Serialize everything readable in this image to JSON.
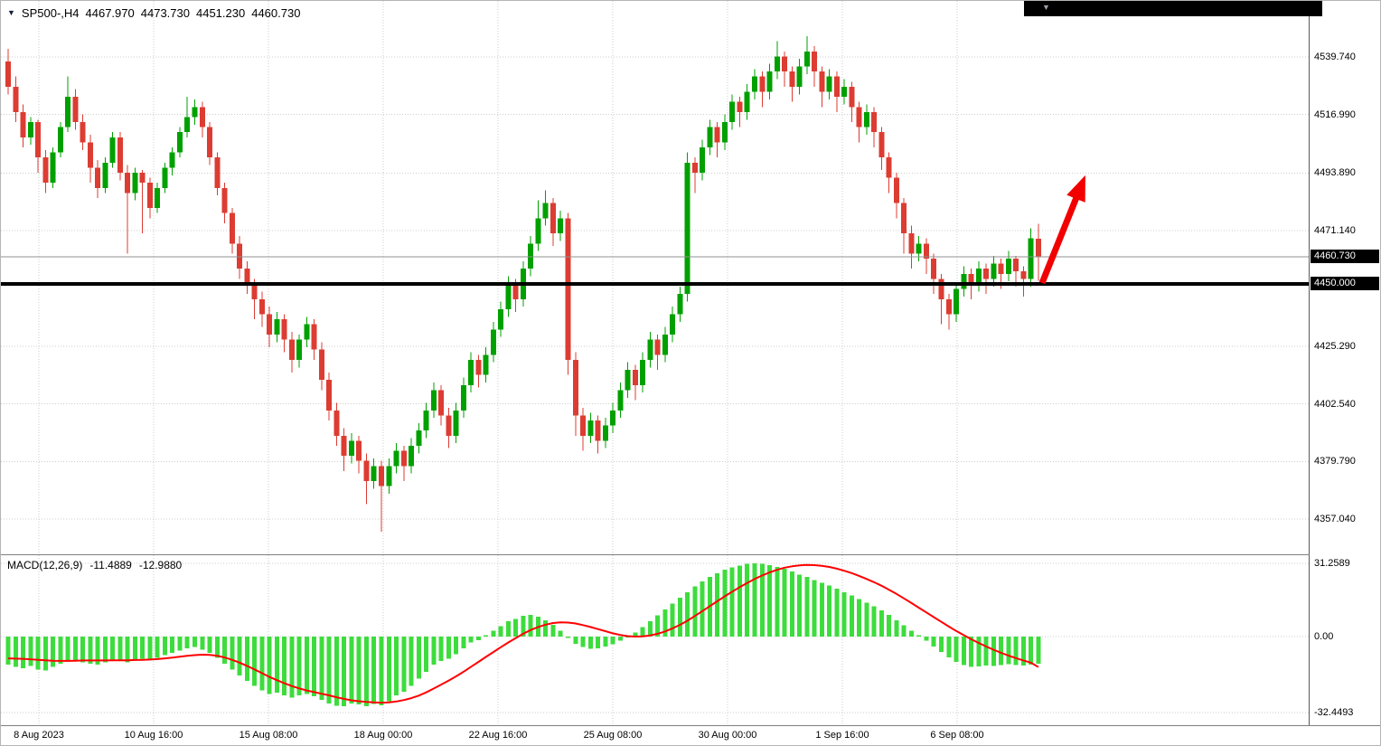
{
  "header": {
    "symbol_period": "SP500-,H4",
    "open": "4467.970",
    "high": "4473.730",
    "low": "4451.230",
    "close": "4460.730"
  },
  "indicator": {
    "label": "MACD(12,26,9)",
    "macd_value": "-11.4889",
    "signal_value": "-12.9880"
  },
  "price_axis": {
    "labels": [
      "4539.740",
      "4516.990",
      "4493.890",
      "4471.140",
      "4425.290",
      "4402.540",
      "4379.790",
      "4357.040"
    ],
    "current_price_badge": "4460.730",
    "support_badge": "4450.000"
  },
  "macd_axis": {
    "labels": [
      "31.2589",
      "0.00",
      "-32.4493"
    ]
  },
  "time_axis": {
    "labels": [
      "8 Aug 2023",
      "10 Aug 16:00",
      "15 Aug 08:00",
      "18 Aug 00:00",
      "22 Aug 16:00",
      "25 Aug 08:00",
      "30 Aug 00:00",
      "1 Sep 16:00",
      "6 Sep 08:00"
    ]
  },
  "colors": {
    "up": "#00A000",
    "down": "#DC3C32",
    "macd_hist": "#3DDC3D",
    "signal": "#FF0000",
    "grid": "#CDCDCD",
    "support_line": "#000000",
    "arrow": "#F20000",
    "badge_bg": "#000000",
    "badge_text": "#FFFFFF"
  },
  "chart_data": {
    "type": "candlestick",
    "symbol": "SP500-",
    "timeframe": "H4",
    "current_ohlc": {
      "open": 4467.97,
      "high": 4473.73,
      "low": 4451.23,
      "close": 4460.73
    },
    "current_price": 4460.73,
    "support_level": 4450.0,
    "price_gridlines": [
      4539.74,
      4516.99,
      4493.89,
      4471.14,
      4425.29,
      4402.54,
      4379.79,
      4357.04
    ],
    "ylim": [
      4350,
      4552
    ],
    "candles": [
      [
        4538,
        4543,
        4525,
        4528
      ],
      [
        4528,
        4532,
        4514,
        4518
      ],
      [
        4518,
        4521,
        4504,
        4508
      ],
      [
        4508,
        4516,
        4505,
        4514
      ],
      [
        4514,
        4515,
        4494,
        4500
      ],
      [
        4500,
        4503,
        4486,
        4490
      ],
      [
        4490,
        4504,
        4488,
        4502
      ],
      [
        4502,
        4514,
        4500,
        4512
      ],
      [
        4512,
        4532,
        4510,
        4524
      ],
      [
        4524,
        4527,
        4511,
        4514
      ],
      [
        4514,
        4517,
        4503,
        4506
      ],
      [
        4506,
        4509,
        4490,
        4496
      ],
      [
        4496,
        4499,
        4484,
        4488
      ],
      [
        4488,
        4500,
        4486,
        4498
      ],
      [
        4498,
        4510,
        4496,
        4508
      ],
      [
        4508,
        4510,
        4491,
        4494
      ],
      [
        4494,
        4497,
        4462,
        4486
      ],
      [
        4486,
        4496,
        4483,
        4494
      ],
      [
        4494,
        4495,
        4470,
        4490
      ],
      [
        4490,
        4492,
        4476,
        4480
      ],
      [
        4480,
        4490,
        4478,
        4488
      ],
      [
        4488,
        4498,
        4486,
        4496
      ],
      [
        4496,
        4504,
        4493,
        4502
      ],
      [
        4502,
        4512,
        4500,
        4510
      ],
      [
        4510,
        4524,
        4508,
        4516
      ],
      [
        4516,
        4523,
        4513,
        4520
      ],
      [
        4520,
        4522,
        4508,
        4512
      ],
      [
        4512,
        4514,
        4497,
        4500
      ],
      [
        4500,
        4502,
        4485,
        4488
      ],
      [
        4488,
        4490,
        4474,
        4478
      ],
      [
        4478,
        4480,
        4462,
        4466
      ],
      [
        4466,
        4469,
        4452,
        4456
      ],
      [
        4456,
        4459,
        4446,
        4450
      ],
      [
        4450,
        4452,
        4436,
        4444
      ],
      [
        4444,
        4447,
        4433,
        4438
      ],
      [
        4438,
        4441,
        4425,
        4430
      ],
      [
        4430,
        4439,
        4427,
        4436
      ],
      [
        4436,
        4438,
        4423,
        4428
      ],
      [
        4428,
        4431,
        4415,
        4420
      ],
      [
        4420,
        4430,
        4417,
        4428
      ],
      [
        4428,
        4437,
        4425,
        4434
      ],
      [
        4434,
        4436,
        4420,
        4424
      ],
      [
        4424,
        4427,
        4408,
        4412
      ],
      [
        4412,
        4415,
        4396,
        4400
      ],
      [
        4400,
        4403,
        4386,
        4390
      ],
      [
        4390,
        4393,
        4376,
        4382
      ],
      [
        4382,
        4391,
        4379,
        4388
      ],
      [
        4388,
        4390,
        4375,
        4380
      ],
      [
        4380,
        4383,
        4363,
        4372
      ],
      [
        4372,
        4381,
        4369,
        4378
      ],
      [
        4378,
        4380,
        4352,
        4370
      ],
      [
        4370,
        4381,
        4367,
        4378
      ],
      [
        4378,
        4387,
        4375,
        4384
      ],
      [
        4384,
        4386,
        4372,
        4378
      ],
      [
        4378,
        4389,
        4375,
        4386
      ],
      [
        4386,
        4395,
        4383,
        4392
      ],
      [
        4392,
        4403,
        4389,
        4400
      ],
      [
        4400,
        4411,
        4397,
        4408
      ],
      [
        4408,
        4410,
        4394,
        4398
      ],
      [
        4398,
        4401,
        4385,
        4390
      ],
      [
        4390,
        4403,
        4387,
        4400
      ],
      [
        4400,
        4413,
        4397,
        4410
      ],
      [
        4410,
        4423,
        4407,
        4420
      ],
      [
        4420,
        4422,
        4409,
        4414
      ],
      [
        4414,
        4425,
        4411,
        4422
      ],
      [
        4422,
        4435,
        4419,
        4432
      ],
      [
        4432,
        4443,
        4429,
        4440
      ],
      [
        4440,
        4453,
        4437,
        4450
      ],
      [
        4450,
        4452,
        4439,
        4444
      ],
      [
        4444,
        4459,
        4441,
        4456
      ],
      [
        4456,
        4469,
        4453,
        4466
      ],
      [
        4466,
        4483,
        4463,
        4476
      ],
      [
        4476,
        4487,
        4473,
        4482
      ],
      [
        4482,
        4484,
        4465,
        4470
      ],
      [
        4470,
        4479,
        4467,
        4476
      ],
      [
        4476,
        4478,
        4414,
        4420
      ],
      [
        4420,
        4423,
        4390,
        4398
      ],
      [
        4398,
        4401,
        4384,
        4390
      ],
      [
        4390,
        4399,
        4387,
        4396
      ],
      [
        4396,
        4398,
        4383,
        4388
      ],
      [
        4388,
        4397,
        4385,
        4394
      ],
      [
        4394,
        4403,
        4391,
        4400
      ],
      [
        4400,
        4411,
        4397,
        4408
      ],
      [
        4408,
        4419,
        4405,
        4416
      ],
      [
        4416,
        4418,
        4404,
        4410
      ],
      [
        4410,
        4423,
        4407,
        4420
      ],
      [
        4420,
        4431,
        4417,
        4428
      ],
      [
        4428,
        4430,
        4416,
        4422
      ],
      [
        4422,
        4433,
        4419,
        4430
      ],
      [
        4430,
        4441,
        4427,
        4438
      ],
      [
        4438,
        4449,
        4435,
        4446
      ],
      [
        4446,
        4502,
        4443,
        4498
      ],
      [
        4498,
        4500,
        4486,
        4494
      ],
      [
        4494,
        4507,
        4491,
        4504
      ],
      [
        4504,
        4515,
        4501,
        4512
      ],
      [
        4512,
        4514,
        4500,
        4506
      ],
      [
        4506,
        4517,
        4503,
        4514
      ],
      [
        4514,
        4525,
        4511,
        4522
      ],
      [
        4522,
        4524,
        4512,
        4518
      ],
      [
        4518,
        4529,
        4515,
        4526
      ],
      [
        4526,
        4535,
        4523,
        4532
      ],
      [
        4532,
        4534,
        4520,
        4526
      ],
      [
        4526,
        4537,
        4523,
        4534
      ],
      [
        4534,
        4546,
        4531,
        4540
      ],
      [
        4540,
        4542,
        4528,
        4534
      ],
      [
        4534,
        4536,
        4522,
        4528
      ],
      [
        4528,
        4539,
        4525,
        4536
      ],
      [
        4536,
        4548,
        4533,
        4542
      ],
      [
        4542,
        4544,
        4528,
        4534
      ],
      [
        4534,
        4536,
        4520,
        4526
      ],
      [
        4526,
        4535,
        4523,
        4532
      ],
      [
        4532,
        4534,
        4518,
        4524
      ],
      [
        4524,
        4531,
        4521,
        4528
      ],
      [
        4528,
        4530,
        4514,
        4520
      ],
      [
        4520,
        4522,
        4506,
        4512
      ],
      [
        4512,
        4521,
        4509,
        4518
      ],
      [
        4518,
        4520,
        4504,
        4510
      ],
      [
        4510,
        4512,
        4495,
        4500
      ],
      [
        4500,
        4502,
        4486,
        4492
      ],
      [
        4492,
        4494,
        4476,
        4482
      ],
      [
        4482,
        4484,
        4462,
        4470
      ],
      [
        4470,
        4473,
        4456,
        4462
      ],
      [
        4462,
        4469,
        4459,
        4466
      ],
      [
        4466,
        4468,
        4454,
        4460
      ],
      [
        4460,
        4462,
        4446,
        4452
      ],
      [
        4452,
        4454,
        4434,
        4444
      ],
      [
        4444,
        4446,
        4432,
        4438
      ],
      [
        4438,
        4450,
        4435,
        4448
      ],
      [
        4448,
        4457,
        4445,
        4454
      ],
      [
        4454,
        4456,
        4444,
        4450
      ],
      [
        4450,
        4459,
        4447,
        4456
      ],
      [
        4456,
        4458,
        4446,
        4452
      ],
      [
        4452,
        4461,
        4449,
        4458
      ],
      [
        4458,
        4460,
        4448,
        4454
      ],
      [
        4454,
        4463,
        4451,
        4460
      ],
      [
        4460,
        4461,
        4449,
        4455
      ],
      [
        4455,
        4457,
        4445,
        4452
      ],
      [
        4452,
        4472,
        4449,
        4468
      ],
      [
        4467.97,
        4473.73,
        4451.23,
        4460.73
      ]
    ],
    "macd": {
      "params": [
        12,
        26,
        9
      ],
      "ylim": [
        -32.4493,
        31.2589
      ],
      "hist": [
        -12,
        -13,
        -13.5,
        -12.5,
        -14,
        -14.5,
        -13,
        -11.5,
        -10,
        -10.5,
        -11,
        -11.5,
        -12,
        -11,
        -10,
        -10.5,
        -11,
        -10,
        -9.5,
        -10,
        -9,
        -8,
        -7,
        -6,
        -5,
        -4.5,
        -5.5,
        -7,
        -9,
        -11.5,
        -14,
        -16.5,
        -19,
        -21,
        -23,
        -24.5,
        -24,
        -25,
        -26,
        -25,
        -24.5,
        -25.5,
        -27,
        -28.5,
        -29.5,
        -29.8,
        -28.5,
        -29,
        -29.8,
        -28.8,
        -29.4,
        -27.5,
        -25,
        -23.5,
        -21,
        -18,
        -15,
        -12,
        -10.5,
        -9.5,
        -7.5,
        -5,
        -2.5,
        -1.5,
        0.5,
        2.5,
        4.5,
        6.5,
        7.5,
        8.8,
        9.2,
        8.5,
        7,
        5,
        2.5,
        -0.5,
        -3,
        -4.5,
        -5.2,
        -5,
        -4.2,
        -3.2,
        -1.8,
        0,
        1.8,
        4,
        6.5,
        9,
        11.5,
        14,
        16.5,
        19,
        21.5,
        23.5,
        25.5,
        27,
        28.5,
        29.5,
        30.3,
        31,
        31.26,
        31,
        30.5,
        29.8,
        29,
        27.8,
        26.5,
        25.5,
        24.2,
        23,
        21.8,
        20.5,
        19,
        17.5,
        16,
        14.5,
        13,
        11.2,
        9.2,
        7,
        4.8,
        2.6,
        0.5,
        -1.8,
        -4.2,
        -6.5,
        -8.8,
        -10.8,
        -12.2,
        -13,
        -12.8,
        -12.4,
        -12.6,
        -12.2,
        -11.8,
        -12.1,
        -12.4,
        -11.9,
        -11.4889
      ],
      "signal": [
        -9.3,
        -9.4,
        -9.5,
        -9.7,
        -9.9,
        -10.1,
        -10.3,
        -10.4,
        -10.4,
        -10.3,
        -10.2,
        -10.2,
        -10.2,
        -10.2,
        -10.1,
        -10.1,
        -10.1,
        -10,
        -9.9,
        -9.8,
        -9.6,
        -9.3,
        -9,
        -8.6,
        -8.2,
        -7.9,
        -7.7,
        -7.8,
        -8.2,
        -8.9,
        -9.9,
        -11.1,
        -12.5,
        -14,
        -15.6,
        -17.2,
        -18.6,
        -19.9,
        -21.1,
        -22.1,
        -23,
        -23.7,
        -24.4,
        -25.1,
        -25.9,
        -26.6,
        -27.2,
        -27.6,
        -27.9,
        -28.1,
        -28.2,
        -28.1,
        -27.7,
        -27.1,
        -26.3,
        -25.2,
        -23.8,
        -22.2,
        -20.5,
        -18.8,
        -17,
        -15,
        -12.9,
        -10.8,
        -8.7,
        -6.6,
        -4.5,
        -2.5,
        -0.6,
        1.2,
        2.8,
        4.1,
        5.1,
        5.8,
        6.1,
        6,
        5.6,
        4.9,
        4.1,
        3.2,
        2.3,
        1.4,
        0.7,
        0.2,
        0,
        0.1,
        0.5,
        1.2,
        2.2,
        3.5,
        5,
        6.8,
        8.8,
        10.9,
        13,
        15.1,
        17.2,
        19.2,
        21.1,
        22.9,
        24.6,
        26.1,
        27.4,
        28.5,
        29.4,
        30,
        30.4,
        30.6,
        30.5,
        30.2,
        29.7,
        29,
        28.1,
        27.1,
        25.9,
        24.6,
        23.2,
        21.7,
        20,
        18.2,
        16.3,
        14.3,
        12.3,
        10.3,
        8.3,
        6.3,
        4.3,
        2.4,
        0.6,
        -1.1,
        -2.7,
        -4.2,
        -5.6,
        -6.9,
        -8.1,
        -9.2,
        -10.2,
        -11.1,
        -12.988
      ]
    },
    "annotations": [
      {
        "type": "arrow",
        "from_bar": 138.5,
        "from_price": 4450.4,
        "to_bar": 144.3,
        "to_price": 4493.0,
        "color": "red"
      }
    ]
  }
}
